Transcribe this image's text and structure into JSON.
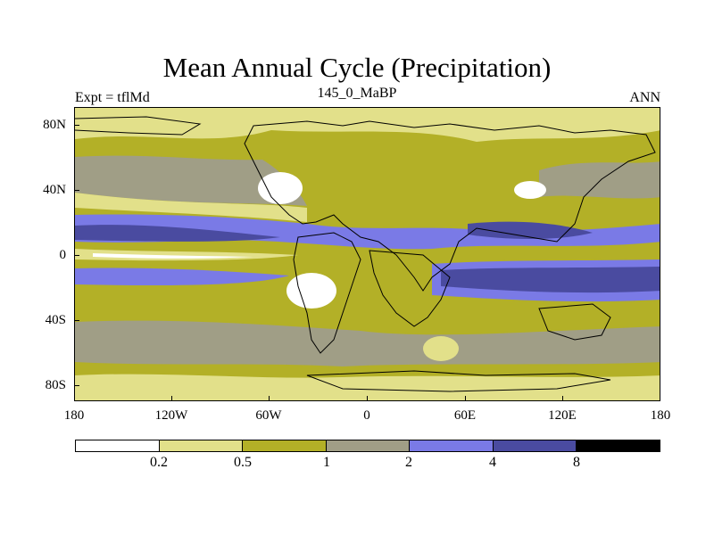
{
  "title": "Mean Annual Cycle (Precipitation)",
  "left_string": "Expt = tflMd",
  "center_string": "145_0_MaBP",
  "right_string": "ANN",
  "lat_labels": [
    "80N",
    "40N",
    "0",
    "40S",
    "80S"
  ],
  "lon_labels": [
    "180",
    "120W",
    "60W",
    "0",
    "60E",
    "120E",
    "180"
  ],
  "colorbar": {
    "colors": [
      "#ffffff",
      "#e2e08a",
      "#b3b027",
      "#a09e86",
      "#7a7ae6",
      "#4a4ba0",
      "#000000"
    ],
    "labels": [
      "0.2",
      "0.5",
      "1",
      "2",
      "4",
      "8"
    ]
  },
  "map_colors": {
    "white": "#ffffff",
    "light_yellow": "#e2e08a",
    "olive": "#b3b027",
    "gray": "#a09e86",
    "light_blue": "#7a7ae6",
    "dark_blue": "#4a4ba0"
  }
}
